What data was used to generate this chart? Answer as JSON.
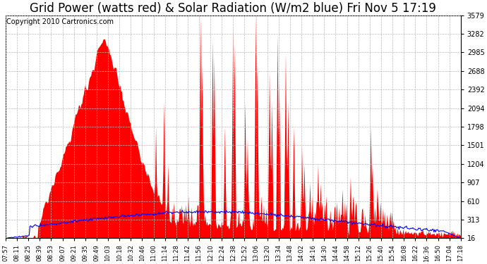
{
  "title": "Grid Power (watts red) & Solar Radiation (W/m2 blue) Fri Nov 5 17:19",
  "copyright": "Copyright 2010 Cartronics.com",
  "yticks": [
    16.0,
    312.9,
    609.9,
    906.8,
    1203.7,
    1500.7,
    1797.6,
    2094.5,
    2391.5,
    2688.4,
    2985.3,
    3282.3,
    3579.2
  ],
  "ymin": 16.0,
  "ymax": 3579.2,
  "xtick_labels": [
    "07:57",
    "08:11",
    "08:25",
    "08:39",
    "08:53",
    "09:07",
    "09:21",
    "09:35",
    "09:49",
    "10:03",
    "10:18",
    "10:32",
    "10:46",
    "11:00",
    "11:14",
    "11:28",
    "11:42",
    "11:56",
    "12:10",
    "12:24",
    "12:38",
    "12:52",
    "13:06",
    "13:20",
    "13:34",
    "13:48",
    "14:02",
    "14:16",
    "14:30",
    "14:44",
    "14:58",
    "15:12",
    "15:26",
    "15:40",
    "15:54",
    "16:08",
    "16:22",
    "16:36",
    "16:50",
    "17:04",
    "17:18"
  ],
  "bg_color": "#ffffff",
  "grid_color": "#bbbbbb",
  "red_color": "#ff0000",
  "blue_color": "#0000ff",
  "title_fontsize": 12,
  "copyright_fontsize": 7,
  "figsize": [
    6.9,
    3.75
  ],
  "dpi": 100
}
